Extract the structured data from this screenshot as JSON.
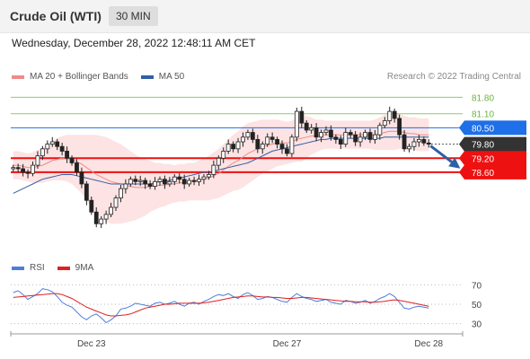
{
  "header": {
    "title": "Crude Oil (WTI)",
    "interval": "30 MIN"
  },
  "timestamp": "Wednesday, December 28, 2022 12:48:11 AM CET",
  "legend": {
    "ma20": {
      "label": "MA 20 + Bollinger Bands",
      "color": "#f08a8a"
    },
    "ma50": {
      "label": "MA 50",
      "color": "#2f5fa5"
    }
  },
  "copyright": "Research © 2022 Trading Central",
  "rsi_legend": {
    "rsi": {
      "label": "RSI",
      "color": "#4d7fd9"
    },
    "ma9": {
      "label": "9MA",
      "color": "#e02020"
    }
  },
  "chart_data": [
    {
      "type": "candlestick",
      "title": "Crude Oil (WTI)",
      "ylim": [
        75.3,
        82.2
      ],
      "levels": [
        {
          "value": 81.8,
          "label": "81.80",
          "kind": "resistance-target",
          "color": "#8ccf5e"
        },
        {
          "value": 81.1,
          "label": "81.10",
          "kind": "resistance-target",
          "color": "#8ccf5e"
        },
        {
          "value": 80.5,
          "label": "80.50",
          "kind": "pivot",
          "color": "#1e6fe8"
        },
        {
          "value": 79.8,
          "label": "79.80",
          "kind": "last-price",
          "color": "#333333"
        },
        {
          "value": 79.2,
          "label": "79.20",
          "kind": "support-target",
          "color": "#ee1111"
        },
        {
          "value": 78.6,
          "label": "78.60",
          "kind": "support-target",
          "color": "#ee1111"
        }
      ],
      "x_ticks": [
        "Dec 23",
        "Dec 27",
        "Dec 28"
      ],
      "closes": [
        78.8,
        78.75,
        78.6,
        78.55,
        78.9,
        79.3,
        79.6,
        79.8,
        79.9,
        79.7,
        79.5,
        79.2,
        79.0,
        78.6,
        78.1,
        77.4,
        76.9,
        76.4,
        76.6,
        76.8,
        77.1,
        77.5,
        77.9,
        78.1,
        78.3,
        78.2,
        78.25,
        78.1,
        78.0,
        78.2,
        78.3,
        78.1,
        78.2,
        78.4,
        78.3,
        78.1,
        78.25,
        78.2,
        78.3,
        78.4,
        78.5,
        78.9,
        79.2,
        79.5,
        79.8,
        79.6,
        79.9,
        80.1,
        80.3,
        80.0,
        79.6,
        79.8,
        80.1,
        80.0,
        79.8,
        79.6,
        79.4,
        80.1,
        81.2,
        80.7,
        80.4,
        80.5,
        80.1,
        80.3,
        80.4,
        80.1,
        80.0,
        79.8,
        80.3,
        80.2,
        79.9,
        80.1,
        80.3,
        80.0,
        80.2,
        80.6,
        80.8,
        81.2,
        80.9,
        80.2,
        79.6,
        79.7,
        79.9,
        80.0,
        79.85,
        79.8
      ],
      "ma20": [
        78.9,
        78.9,
        78.85,
        78.8,
        78.8,
        78.85,
        78.9,
        79.0,
        79.1,
        79.15,
        79.2,
        79.2,
        79.15,
        79.05,
        78.95,
        78.8,
        78.65,
        78.5,
        78.4,
        78.3,
        78.2,
        78.15,
        78.1,
        78.05,
        78.0,
        77.95,
        77.95,
        77.95,
        78.0,
        78.0,
        78.05,
        78.05,
        78.1,
        78.1,
        78.15,
        78.15,
        78.2,
        78.2,
        78.25,
        78.3,
        78.35,
        78.45,
        78.55,
        78.7,
        78.85,
        79.0,
        79.1,
        79.25,
        79.4,
        79.5,
        79.6,
        79.7,
        79.75,
        79.8,
        79.85,
        79.85,
        79.85,
        79.9,
        80.0,
        80.05,
        80.1,
        80.15,
        80.15,
        80.2,
        80.2,
        80.2,
        80.2,
        80.2,
        80.2,
        80.2,
        80.2,
        80.2,
        80.2,
        80.2,
        80.2,
        80.25,
        80.3,
        80.35,
        80.35,
        80.35,
        80.3,
        80.25,
        80.25,
        80.2,
        80.2,
        80.2
      ],
      "ma50": [
        77.7,
        77.8,
        77.9,
        78.0,
        78.1,
        78.2,
        78.3,
        78.35,
        78.4,
        78.45,
        78.5,
        78.5,
        78.5,
        78.45,
        78.4,
        78.35,
        78.3,
        78.25,
        78.2,
        78.15,
        78.1,
        78.1,
        78.1,
        78.1,
        78.1,
        78.1,
        78.1,
        78.1,
        78.1,
        78.15,
        78.2,
        78.2,
        78.25,
        78.3,
        78.35,
        78.4,
        78.45,
        78.5,
        78.55,
        78.6,
        78.6,
        78.65,
        78.7,
        78.75,
        78.8,
        78.85,
        78.9,
        78.95,
        79.0,
        79.1,
        79.2,
        79.3,
        79.4,
        79.5,
        79.55,
        79.6,
        79.65,
        79.7,
        79.75,
        79.8,
        79.85,
        79.9,
        79.95,
        80.0,
        80.0,
        80.05,
        80.05,
        80.05,
        80.05,
        80.05,
        80.05,
        80.05,
        80.05,
        80.05,
        80.05,
        80.05,
        80.1,
        80.1,
        80.1,
        80.1,
        80.1,
        80.1,
        80.1,
        80.1,
        80.1,
        80.1
      ],
      "bb_width": [
        0.6,
        0.6,
        0.6,
        0.6,
        0.65,
        0.7,
        0.75,
        0.8,
        0.85,
        0.9,
        0.95,
        1.0,
        1.05,
        1.15,
        1.25,
        1.4,
        1.55,
        1.7,
        1.75,
        1.8,
        1.8,
        1.75,
        1.7,
        1.6,
        1.5,
        1.4,
        1.3,
        1.2,
        1.1,
        1.0,
        0.95,
        0.9,
        0.85,
        0.8,
        0.8,
        0.8,
        0.8,
        0.8,
        0.85,
        0.9,
        0.95,
        1.0,
        1.05,
        1.1,
        1.15,
        1.2,
        1.25,
        1.3,
        1.3,
        1.25,
        1.2,
        1.15,
        1.1,
        1.05,
        1.0,
        0.95,
        0.9,
        0.9,
        0.95,
        1.0,
        0.9,
        0.8,
        0.7,
        0.65,
        0.6,
        0.6,
        0.6,
        0.6,
        0.6,
        0.6,
        0.6,
        0.6,
        0.6,
        0.6,
        0.65,
        0.7,
        0.75,
        0.8,
        0.8,
        0.75,
        0.7,
        0.7,
        0.7,
        0.7,
        0.7,
        0.7
      ]
    },
    {
      "type": "line",
      "title": "RSI",
      "ylim": [
        25,
        75
      ],
      "y_ticks": [
        70,
        50,
        30
      ],
      "series": [
        {
          "name": "RSI",
          "values": [
            62,
            64,
            60,
            55,
            58,
            61,
            66,
            65,
            63,
            58,
            52,
            49,
            47,
            42,
            37,
            34,
            38,
            40,
            36,
            31,
            34,
            38,
            45,
            46,
            48,
            51,
            50,
            49,
            48,
            51,
            52,
            50,
            51,
            53,
            50,
            48,
            51,
            52,
            50,
            53,
            55,
            58,
            60,
            59,
            61,
            58,
            56,
            60,
            62,
            59,
            55,
            56,
            58,
            57,
            55,
            53,
            52,
            57,
            61,
            58,
            56,
            55,
            53,
            54,
            55,
            52,
            51,
            50,
            54,
            53,
            51,
            52,
            54,
            51,
            53,
            56,
            58,
            61,
            58,
            52,
            46,
            45,
            47,
            48,
            47,
            46
          ]
        },
        {
          "name": "9MA",
          "values": [
            57,
            57.5,
            58,
            58.5,
            59,
            59.5,
            60,
            60.5,
            61,
            61,
            60,
            58,
            56,
            53,
            50,
            47,
            45,
            43,
            41,
            39,
            38,
            38,
            38.5,
            39,
            40,
            42,
            44,
            46,
            47,
            48,
            49,
            50,
            50,
            50.5,
            51,
            51,
            51,
            51,
            51,
            51.5,
            52,
            53,
            54,
            55,
            56,
            57,
            57.5,
            58,
            58.5,
            58.5,
            58,
            57.5,
            57.5,
            57,
            57,
            56.5,
            56,
            56,
            56.5,
            57,
            57,
            56.5,
            56,
            55.5,
            55,
            54.5,
            54,
            53.5,
            53,
            53,
            52.5,
            52.5,
            52.5,
            52,
            52,
            52.5,
            53,
            54,
            54.5,
            54,
            53,
            52,
            51,
            50,
            49,
            48
          ]
        }
      ]
    }
  ]
}
